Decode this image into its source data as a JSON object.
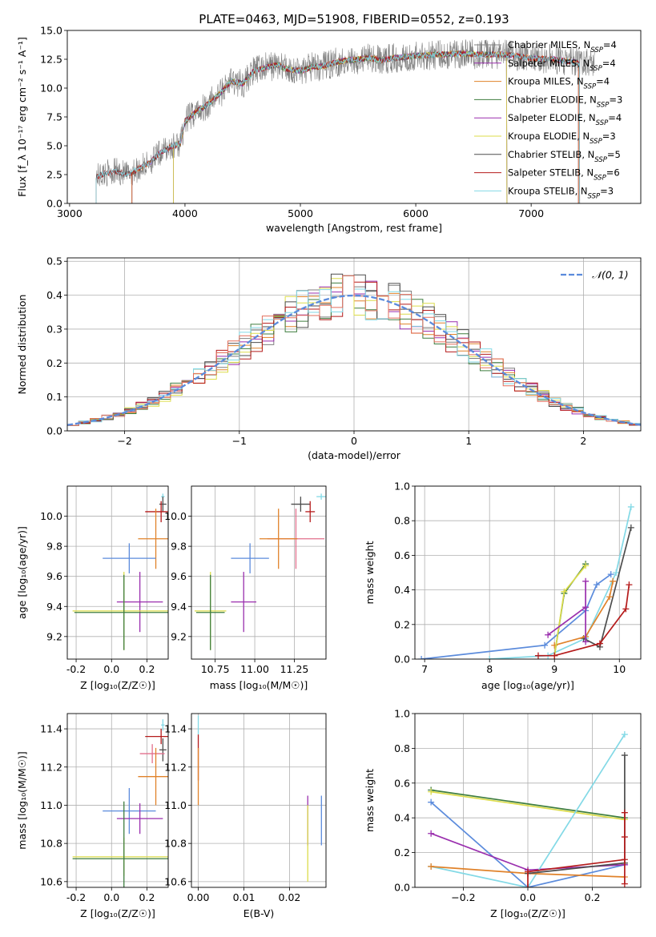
{
  "figure": {
    "title": "PLATE=0463, MJD=51908, FIBERID=0552, z=0.193"
  },
  "colors": [
    "#7f7f7f",
    "#9a2fae",
    "#e0822a",
    "#3e7d3f",
    "#9a2fae",
    "#dcdc4a",
    "#4d4d4d",
    "#b51b1b",
    "#83d9e6"
  ],
  "chart_data": [
    {
      "id": "spectrum",
      "type": "line",
      "title": "PLATE=0463, MJD=51908, FIBERID=0552, z=0.193",
      "xlabel": "wavelength [Angstrom, rest frame]",
      "ylabel": "Flux [f_λ 10⁻¹⁷ erg cm⁻² s⁻¹ A⁻¹]",
      "xlim": [
        2980,
        7950
      ],
      "ylim": [
        0,
        15
      ],
      "xticks": [
        3000,
        4000,
        5000,
        6000,
        7000
      ],
      "yticks": [
        0.0,
        2.5,
        5.0,
        7.5,
        10.0,
        12.5,
        15.0
      ],
      "legend_position": "right",
      "observed": {
        "x": [
          3230,
          3300,
          3400,
          3500,
          3600,
          3700,
          3800,
          3900,
          3960,
          4000,
          4100,
          4200,
          4300,
          4400,
          4500,
          4600,
          4700,
          4800,
          4900,
          5000,
          5100,
          5200,
          5300,
          5400,
          5500,
          5600,
          5700,
          5800,
          5900,
          6000,
          6200,
          6400,
          6600,
          6800,
          7000,
          7200,
          7400
        ],
        "y": [
          2.3,
          2.6,
          2.8,
          2.5,
          3.0,
          3.6,
          4.5,
          5.0,
          5.2,
          7.1,
          8.0,
          8.6,
          9.5,
          10.6,
          10.4,
          11.5,
          11.8,
          12.0,
          11.6,
          11.5,
          11.8,
          11.9,
          12.2,
          12.4,
          12.5,
          12.6,
          12.4,
          12.6,
          12.7,
          12.8,
          12.9,
          13.0,
          12.9,
          12.9,
          12.6,
          12.5,
          12.2
        ]
      },
      "series": [
        {
          "name": "Chabrier MILES, N_SSP=4",
          "color": "#7f7f7f",
          "xmin": 3540,
          "xmax": 7410
        },
        {
          "name": "Salpeter MILES, N_SSP=4",
          "color": "#9a2fae",
          "xmin": 3540,
          "xmax": 7410
        },
        {
          "name": "Kroupa MILES, N_SSP=4",
          "color": "#e0822a",
          "xmin": 3540,
          "xmax": 7410
        },
        {
          "name": "Chabrier ELODIE, N_SSP=3",
          "color": "#3e7d3f",
          "xmin": 3900,
          "xmax": 6790
        },
        {
          "name": "Salpeter ELODIE, N_SSP=4",
          "color": "#9a2fae",
          "xmin": 3900,
          "xmax": 6790
        },
        {
          "name": "Kroupa ELODIE, N_SSP=3",
          "color": "#dcdc4a",
          "xmin": 3900,
          "xmax": 6790
        },
        {
          "name": "Chabrier STELIB, N_SSP=5",
          "color": "#4d4d4d",
          "xmin": 3230,
          "xmax": 7420
        },
        {
          "name": "Salpeter STELIB, N_SSP=6",
          "color": "#b51b1b",
          "xmin": 3230,
          "xmax": 7420
        },
        {
          "name": "Kroupa STELIB, N_SSP=3",
          "color": "#83d9e6",
          "xmin": 3230,
          "xmax": 7420
        }
      ]
    },
    {
      "id": "residuals",
      "type": "line",
      "xlabel": "(data-model)/error",
      "ylabel": "Normed distribution",
      "xlim": [
        -2.5,
        2.5
      ],
      "ylim": [
        0,
        0.51
      ],
      "xticks": [
        -2,
        -1,
        0,
        1,
        2
      ],
      "yticks": [
        0.0,
        0.1,
        0.2,
        0.3,
        0.4,
        0.5
      ],
      "grid": true,
      "legend_position": "top-right",
      "legend": "𝒩(0, 1)",
      "bin_width": 0.1,
      "step_colors": [
        "#7f7f7f",
        "#9a2fae",
        "#e0822a",
        "#3e7d3f",
        "#dcdc4a",
        "#4d4d4d",
        "#b51b1b",
        "#83d9e6",
        "#e26f5c"
      ]
    },
    {
      "id": "age-vs-Z",
      "type": "scatter",
      "kind": "errorbar",
      "xlabel": "Z [log₁₀(Z/Z☉)]",
      "ylabel": "age  [log₁₀(age/yr)]",
      "xlim": [
        -0.25,
        0.32
      ],
      "ylim": [
        9.05,
        10.2
      ],
      "xticks": [
        -0.2,
        0.0,
        0.2
      ],
      "yticks": [
        9.2,
        9.4,
        9.6,
        9.8,
        10.0
      ],
      "grid": true,
      "points": [
        {
          "x": 0.29,
          "y": 10.13,
          "xerr": 0.01,
          "yerr": 0.02,
          "color": "#83d9e6"
        },
        {
          "x": 0.29,
          "y": 10.08,
          "xerr": 0.02,
          "yerr": 0.05,
          "color": "#4d4d4d"
        },
        {
          "x": 0.28,
          "y": 10.03,
          "xerr": 0.09,
          "yerr": 0.07,
          "color": "#b51b1b"
        },
        {
          "x": 0.25,
          "y": 9.85,
          "xerr": 0.1,
          "yerr": 0.2,
          "color": "#e0822a"
        },
        {
          "x": 0.1,
          "y": 9.72,
          "xerr": 0.15,
          "yerr": 0.1,
          "color": "#5b8bdc"
        },
        {
          "x": 0.16,
          "y": 9.43,
          "xerr": 0.13,
          "yerr": 0.2,
          "color": "#9a2fae"
        },
        {
          "x": 0.07,
          "y": 9.37,
          "xerr": 0.29,
          "yerr": 0.26,
          "color": "#dcdc4a"
        },
        {
          "x": 0.07,
          "y": 9.36,
          "xerr": 0.28,
          "yerr": 0.25,
          "color": "#3e7d3f"
        }
      ]
    },
    {
      "id": "age-vs-mass",
      "type": "scatter",
      "kind": "errorbar",
      "xlabel": "mass [log₁₀(M/M☉)]",
      "xlim": [
        10.6,
        11.45
      ],
      "ylim": [
        9.05,
        10.2
      ],
      "xticks": [
        10.75,
        11.0,
        11.25
      ],
      "yticks": [
        9.2,
        9.4,
        9.6,
        9.8,
        10.0
      ],
      "grid": true,
      "points": [
        {
          "x": 11.42,
          "y": 10.13,
          "xerr": 0.03,
          "yerr": 0.02,
          "color": "#83d9e6"
        },
        {
          "x": 11.29,
          "y": 10.08,
          "xerr": 0.06,
          "yerr": 0.05,
          "color": "#4d4d4d"
        },
        {
          "x": 11.35,
          "y": 10.03,
          "xerr": 0.03,
          "yerr": 0.07,
          "color": "#b51b1b"
        },
        {
          "x": 11.26,
          "y": 9.85,
          "xerr": 0.18,
          "yerr": 0.2,
          "color": "#e26f8c"
        },
        {
          "x": 11.15,
          "y": 9.85,
          "xerr": 0.12,
          "yerr": 0.2,
          "color": "#e0822a"
        },
        {
          "x": 10.97,
          "y": 9.72,
          "xerr": 0.12,
          "yerr": 0.1,
          "color": "#5b8bdc"
        },
        {
          "x": 10.93,
          "y": 9.43,
          "xerr": 0.08,
          "yerr": 0.2,
          "color": "#9a2fae"
        },
        {
          "x": 10.72,
          "y": 9.37,
          "xerr": 0.1,
          "yerr": 0.26,
          "color": "#dcdc4a"
        },
        {
          "x": 10.72,
          "y": 9.36,
          "xerr": 0.09,
          "yerr": 0.25,
          "color": "#3e7d3f"
        }
      ]
    },
    {
      "id": "massweight-vs-age",
      "type": "line",
      "xlabel": "age  [log₁₀(age/yr)]",
      "ylabel": "mass weight",
      "xlim": [
        6.85,
        10.33
      ],
      "ylim": [
        0,
        1
      ],
      "xticks": [
        7,
        8,
        9,
        10
      ],
      "yticks": [
        0.0,
        0.2,
        0.4,
        0.6,
        0.8,
        1.0
      ],
      "grid": true,
      "series": [
        {
          "color": "#5b8bdc",
          "x": [
            6.95,
            8.85,
            9.48,
            9.65,
            9.87
          ],
          "y": [
            0.0,
            0.08,
            0.28,
            0.43,
            0.49
          ]
        },
        {
          "color": "#83d9e6",
          "x": [
            8.0,
            8.9,
            9.48,
            9.95,
            10.18
          ],
          "y": [
            0.0,
            0.02,
            0.12,
            0.5,
            0.88
          ]
        },
        {
          "color": "#4d4d4d",
          "x": [
            9.45,
            9.7,
            10.18
          ],
          "y": [
            0.12,
            0.07,
            0.76
          ]
        },
        {
          "color": "#e0822a",
          "x": [
            9.0,
            9.48,
            9.85,
            9.9
          ],
          "y": [
            0.08,
            0.13,
            0.36,
            0.45
          ]
        },
        {
          "color": "#3e7d3f",
          "x": [
            9.0,
            9.15,
            9.48
          ],
          "y": [
            0.02,
            0.38,
            0.55
          ]
        },
        {
          "color": "#dcdc4a",
          "x": [
            9.0,
            9.15,
            9.48
          ],
          "y": [
            0.02,
            0.39,
            0.54
          ]
        },
        {
          "color": "#9a2fae",
          "x": [
            8.9,
            9.48,
            9.48,
            9.48
          ],
          "y": [
            0.14,
            0.3,
            0.45,
            0.1
          ]
        },
        {
          "color": "#b51b1b",
          "x": [
            8.75,
            9.0,
            9.7,
            10.1,
            10.15
          ],
          "y": [
            0.02,
            0.02,
            0.09,
            0.29,
            0.43
          ]
        }
      ]
    },
    {
      "id": "mass-vs-Z",
      "type": "scatter",
      "kind": "errorbar",
      "xlabel": "Z [log₁₀(Z/Z☉)]",
      "ylabel": "mass [log₁₀(M/M☉)]",
      "xlim": [
        -0.25,
        0.32
      ],
      "ylim": [
        10.57,
        11.48
      ],
      "xticks": [
        -0.2,
        0.0,
        0.2
      ],
      "yticks": [
        10.6,
        10.8,
        11.0,
        11.2,
        11.4
      ],
      "grid": true,
      "points": [
        {
          "x": 0.29,
          "y": 11.42,
          "xerr": 0.01,
          "yerr": 0.03,
          "color": "#83d9e6"
        },
        {
          "x": 0.28,
          "y": 11.36,
          "xerr": 0.09,
          "yerr": 0.04,
          "color": "#b51b1b"
        },
        {
          "x": 0.29,
          "y": 11.29,
          "xerr": 0.02,
          "yerr": 0.06,
          "color": "#4d4d4d"
        },
        {
          "x": 0.23,
          "y": 11.27,
          "xerr": 0.07,
          "yerr": 0.05,
          "color": "#e26f8c"
        },
        {
          "x": 0.25,
          "y": 11.15,
          "xerr": 0.1,
          "yerr": 0.15,
          "color": "#e0822a"
        },
        {
          "x": 0.1,
          "y": 10.97,
          "xerr": 0.15,
          "yerr": 0.12,
          "color": "#5b8bdc"
        },
        {
          "x": 0.16,
          "y": 10.93,
          "xerr": 0.13,
          "yerr": 0.08,
          "color": "#9a2fae"
        },
        {
          "x": 0.07,
          "y": 10.73,
          "xerr": 0.29,
          "yerr": 0.1,
          "color": "#dcdc4a"
        },
        {
          "x": 0.07,
          "y": 10.72,
          "xerr": 0.29,
          "yerr": 0.3,
          "color": "#3e7d3f"
        }
      ]
    },
    {
      "id": "mass-vs-EBV",
      "type": "scatter",
      "kind": "errorbar",
      "xlabel": "E(B-V)",
      "xlim": [
        -0.0015,
        0.028
      ],
      "ylim": [
        10.57,
        11.48
      ],
      "xticks": [
        0.0,
        0.01,
        0.02
      ],
      "yticks": [
        10.6,
        10.8,
        11.0,
        11.2,
        11.4
      ],
      "grid": true,
      "points": [
        {
          "x": 0.0,
          "y": 11.42,
          "xerr": 0.0,
          "yerr": 0.05,
          "color": "#83d9e6"
        },
        {
          "x": 0.0,
          "y": 11.25,
          "xerr": 0.0,
          "yerr": 0.12,
          "color": "#b51b1b"
        },
        {
          "x": 0.0,
          "y": 11.15,
          "xerr": 0.0,
          "yerr": 0.15,
          "color": "#e0822a"
        },
        {
          "x": 0.027,
          "y": 10.92,
          "xerr": 0.0,
          "yerr": 0.13,
          "color": "#5b8bdc"
        },
        {
          "x": 0.024,
          "y": 10.92,
          "xerr": 0.0,
          "yerr": 0.13,
          "color": "#9a2fae"
        },
        {
          "x": 0.024,
          "y": 10.8,
          "xerr": 0.0,
          "yerr": 0.2,
          "color": "#dcdc4a"
        }
      ]
    },
    {
      "id": "massweight-vs-Z",
      "type": "line",
      "xlabel": "Z [log₁₀(Z/Z☉)]",
      "ylabel": "mass weight",
      "xlim": [
        -0.35,
        0.35
      ],
      "ylim": [
        0,
        1
      ],
      "xticks": [
        -0.2,
        0.0,
        0.2
      ],
      "yticks": [
        0.0,
        0.2,
        0.4,
        0.6,
        0.8,
        1.0
      ],
      "grid": true,
      "series": [
        {
          "color": "#3e7d3f",
          "x": [
            -0.3,
            0.3
          ],
          "y": [
            0.56,
            0.4
          ]
        },
        {
          "color": "#dcdc4a",
          "x": [
            -0.3,
            0.3
          ],
          "y": [
            0.55,
            0.39
          ]
        },
        {
          "color": "#5b8bdc",
          "x": [
            -0.3,
            0.0,
            0.3
          ],
          "y": [
            0.49,
            0.0,
            0.13
          ]
        },
        {
          "color": "#9a2fae",
          "x": [
            -0.3,
            0.0,
            0.3
          ],
          "y": [
            0.31,
            0.1,
            0.13
          ]
        },
        {
          "color": "#83d9e6",
          "x": [
            -0.3,
            0.0,
            0.3
          ],
          "y": [
            0.12,
            0.0,
            0.88
          ]
        },
        {
          "color": "#e0822a",
          "x": [
            -0.3,
            0.0,
            0.3
          ],
          "y": [
            0.12,
            0.08,
            0.06
          ]
        },
        {
          "color": "#4d4d4d",
          "x": [
            0.0,
            0.3,
            0.3,
            0.3
          ],
          "y": [
            0.08,
            0.14,
            0.76,
            0.14
          ]
        },
        {
          "color": "#b51b1b",
          "x": [
            0.0,
            0.0,
            0.3,
            0.3,
            0.3,
            0.3
          ],
          "y": [
            0.0,
            0.09,
            0.16,
            0.43,
            0.29,
            0.02
          ]
        }
      ]
    }
  ]
}
